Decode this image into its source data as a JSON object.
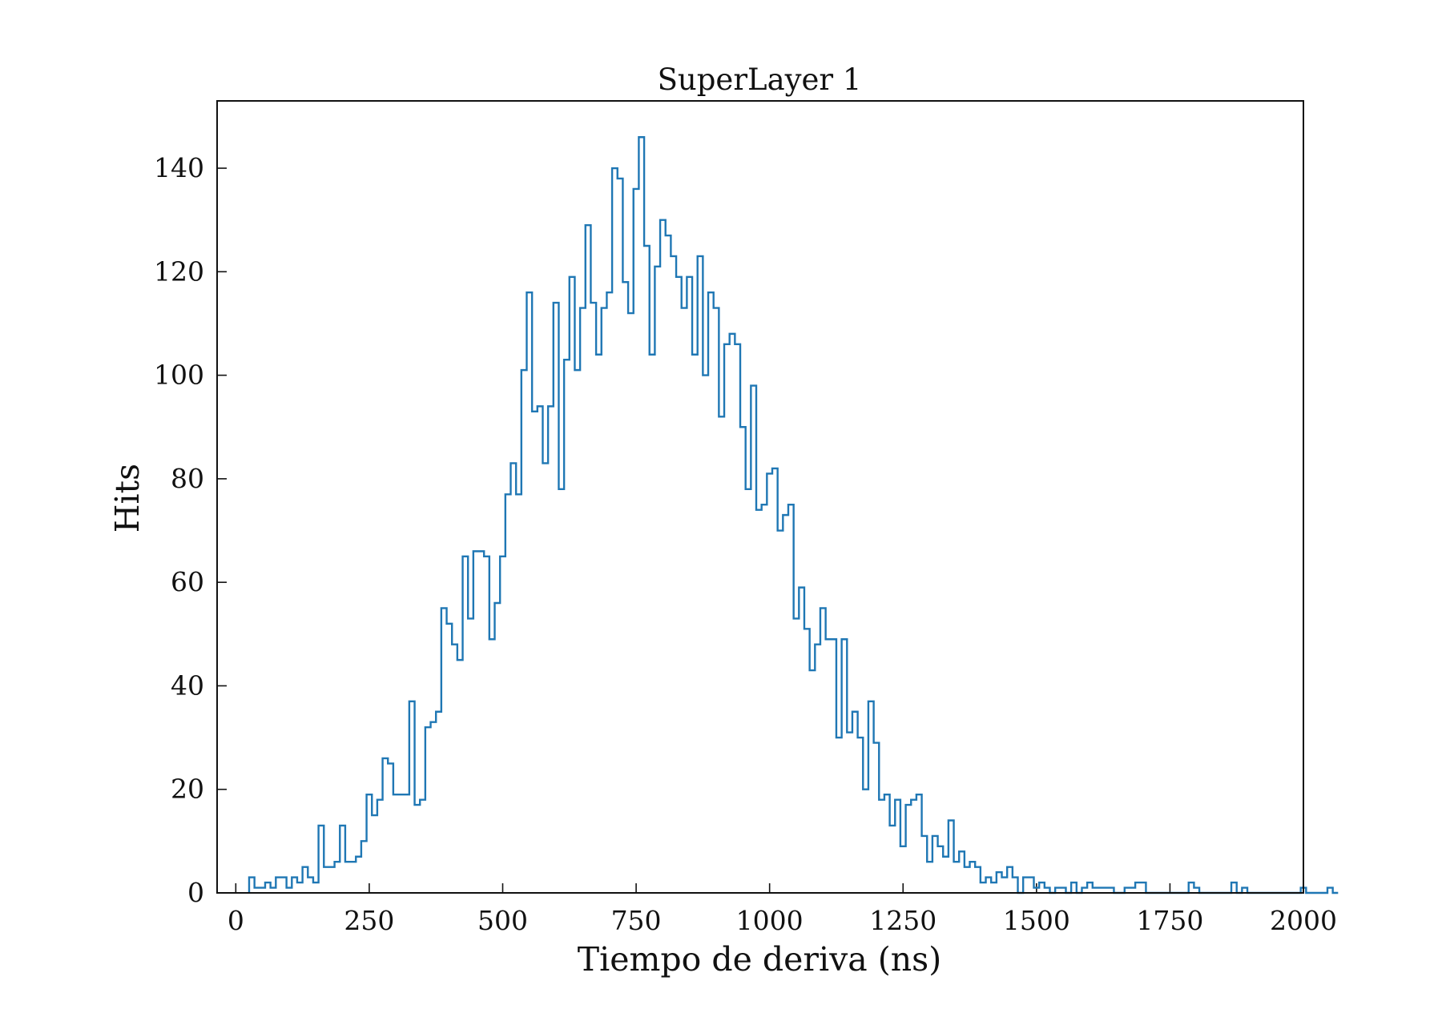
{
  "chart_data": {
    "type": "histogram",
    "title": "SuperLayer 1",
    "xlabel": "Tiempo de deriva (ns)",
    "ylabel": "Hits",
    "xlim": [
      -35,
      2000
    ],
    "ylim": [
      0,
      153
    ],
    "xticks": [
      0,
      250,
      500,
      750,
      1000,
      1250,
      1500,
      1750,
      2000
    ],
    "yticks": [
      0,
      20,
      40,
      60,
      80,
      100,
      120,
      140
    ],
    "grid": false,
    "legend": "none",
    "series_color": "#1f77b4",
    "bin_width": 10,
    "x_start": 25,
    "series": [
      {
        "values": [
          3,
          1,
          1,
          2,
          1,
          3,
          3,
          1,
          3,
          2,
          5,
          3,
          2,
          13,
          5,
          5,
          6,
          13,
          6,
          6,
          7,
          10,
          19,
          15,
          18,
          26,
          25,
          19,
          19,
          19,
          37,
          17,
          18,
          32,
          33,
          35,
          55,
          52,
          48,
          45,
          65,
          53,
          66,
          66,
          65,
          49,
          56,
          65,
          77,
          83,
          77,
          101,
          116,
          93,
          94,
          83,
          94,
          114,
          78,
          103,
          119,
          101,
          113,
          129,
          114,
          104,
          113,
          116,
          140,
          138,
          118,
          112,
          136,
          146,
          125,
          104,
          121,
          130,
          127,
          123,
          119,
          113,
          119,
          104,
          123,
          100,
          116,
          113,
          92,
          106,
          108,
          106,
          90,
          78,
          98,
          74,
          75,
          81,
          82,
          70,
          73,
          75,
          53,
          59,
          51,
          43,
          48,
          55,
          49,
          49,
          30,
          49,
          31,
          35,
          30,
          20,
          37,
          29,
          18,
          19,
          13,
          18,
          9,
          17,
          18,
          19,
          11,
          6,
          11,
          9,
          7,
          14,
          6,
          8,
          5,
          6,
          5,
          2,
          3,
          2,
          4,
          3,
          5,
          3,
          0,
          3,
          3,
          1,
          2,
          1,
          0,
          1,
          1,
          0,
          2,
          0,
          1,
          2,
          1,
          1,
          1,
          1,
          0,
          0,
          1,
          1,
          2,
          2,
          0,
          0,
          0,
          0,
          0,
          0,
          0,
          0,
          2,
          1,
          0,
          0,
          0,
          0,
          0,
          0,
          2,
          0,
          1,
          0,
          0,
          0,
          0,
          0,
          0,
          0,
          0,
          0,
          0,
          1,
          0,
          0,
          0,
          0,
          1,
          0
        ]
      }
    ]
  }
}
